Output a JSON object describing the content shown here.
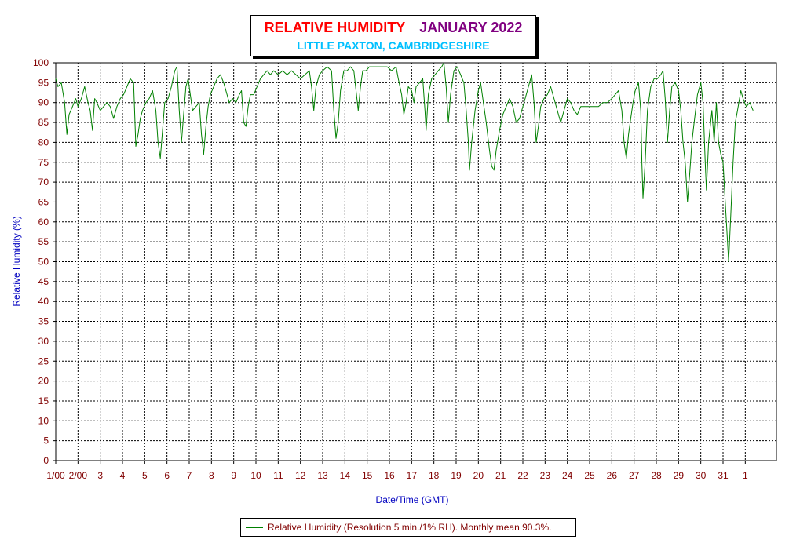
{
  "header": {
    "title": "RELATIVE HUMIDITY",
    "month": "JANUARY 2022",
    "subtitle": "LITTLE PAXTON, CAMBRIDGESHIRE"
  },
  "colors": {
    "series": "#008000",
    "tick_text": "#800000",
    "axis_label": "#0000c0",
    "title": "#ff0000",
    "month": "#800080",
    "subtitle": "#00c0ff"
  },
  "chart_data": {
    "type": "line",
    "xlabel": "Date/Time (GMT)",
    "ylabel": "Relative Humidity (%)",
    "ylim": [
      0,
      100
    ],
    "xlim": [
      1,
      33.4
    ],
    "grid": true,
    "legend_position": "bottom-center",
    "yticks": [
      0,
      5,
      10,
      15,
      20,
      25,
      30,
      35,
      40,
      45,
      50,
      55,
      60,
      65,
      70,
      75,
      80,
      85,
      90,
      95,
      100
    ],
    "xticks": [
      {
        "x": 1,
        "label": "1/00"
      },
      {
        "x": 2,
        "label": "2/00"
      },
      {
        "x": 3,
        "label": "3"
      },
      {
        "x": 4,
        "label": "4"
      },
      {
        "x": 5,
        "label": "5"
      },
      {
        "x": 6,
        "label": "6"
      },
      {
        "x": 7,
        "label": "7"
      },
      {
        "x": 8,
        "label": "8"
      },
      {
        "x": 9,
        "label": "9"
      },
      {
        "x": 10,
        "label": "10"
      },
      {
        "x": 11,
        "label": "11"
      },
      {
        "x": 12,
        "label": "12"
      },
      {
        "x": 13,
        "label": "13"
      },
      {
        "x": 14,
        "label": "14"
      },
      {
        "x": 15,
        "label": "15"
      },
      {
        "x": 16,
        "label": "16"
      },
      {
        "x": 17,
        "label": "17"
      },
      {
        "x": 18,
        "label": "18"
      },
      {
        "x": 19,
        "label": "19"
      },
      {
        "x": 20,
        "label": "20"
      },
      {
        "x": 21,
        "label": "21"
      },
      {
        "x": 22,
        "label": "22"
      },
      {
        "x": 23,
        "label": "23"
      },
      {
        "x": 24,
        "label": "24"
      },
      {
        "x": 25,
        "label": "25"
      },
      {
        "x": 26,
        "label": "26"
      },
      {
        "x": 27,
        "label": "27"
      },
      {
        "x": 28,
        "label": "28"
      },
      {
        "x": 29,
        "label": "29"
      },
      {
        "x": 30,
        "label": "30"
      },
      {
        "x": 31,
        "label": "31"
      },
      {
        "x": 32,
        "label": "1"
      }
    ],
    "series": [
      {
        "name": "Relative Humidity (Resolution 5 min./1% RH). Monthly mean 90.3%.",
        "points": [
          [
            1.0,
            96
          ],
          [
            1.1,
            94
          ],
          [
            1.25,
            95
          ],
          [
            1.4,
            90
          ],
          [
            1.5,
            82
          ],
          [
            1.6,
            87
          ],
          [
            1.75,
            89
          ],
          [
            1.9,
            91
          ],
          [
            2.0,
            89
          ],
          [
            2.15,
            91
          ],
          [
            2.3,
            94
          ],
          [
            2.45,
            90
          ],
          [
            2.55,
            88
          ],
          [
            2.65,
            83
          ],
          [
            2.75,
            91
          ],
          [
            2.85,
            90
          ],
          [
            3.0,
            88
          ],
          [
            3.15,
            89
          ],
          [
            3.3,
            90
          ],
          [
            3.45,
            89
          ],
          [
            3.6,
            86
          ],
          [
            3.75,
            89
          ],
          [
            3.9,
            91
          ],
          [
            4.05,
            92
          ],
          [
            4.2,
            94
          ],
          [
            4.35,
            96
          ],
          [
            4.5,
            95
          ],
          [
            4.6,
            79
          ],
          [
            4.7,
            82
          ],
          [
            4.8,
            86
          ],
          [
            4.9,
            88
          ],
          [
            5.05,
            90
          ],
          [
            5.2,
            91
          ],
          [
            5.35,
            93
          ],
          [
            5.5,
            88
          ],
          [
            5.6,
            80
          ],
          [
            5.7,
            76
          ],
          [
            5.8,
            83
          ],
          [
            5.9,
            90
          ],
          [
            6.05,
            91
          ],
          [
            6.2,
            94
          ],
          [
            6.35,
            98
          ],
          [
            6.45,
            99
          ],
          [
            6.55,
            88
          ],
          [
            6.65,
            80
          ],
          [
            6.75,
            87
          ],
          [
            6.85,
            94
          ],
          [
            6.95,
            96
          ],
          [
            7.05,
            92
          ],
          [
            7.15,
            88
          ],
          [
            7.3,
            89
          ],
          [
            7.45,
            90
          ],
          [
            7.55,
            82
          ],
          [
            7.65,
            77
          ],
          [
            7.75,
            84
          ],
          [
            7.85,
            89
          ],
          [
            7.95,
            92
          ],
          [
            8.1,
            94
          ],
          [
            8.25,
            96
          ],
          [
            8.4,
            97
          ],
          [
            8.55,
            95
          ],
          [
            8.7,
            92
          ],
          [
            8.8,
            90
          ],
          [
            8.95,
            91
          ],
          [
            9.1,
            90
          ],
          [
            9.25,
            92
          ],
          [
            9.35,
            93
          ],
          [
            9.45,
            85
          ],
          [
            9.55,
            84
          ],
          [
            9.65,
            89
          ],
          [
            9.75,
            92
          ],
          [
            9.9,
            92
          ],
          [
            10.05,
            94
          ],
          [
            10.2,
            96
          ],
          [
            10.35,
            97
          ],
          [
            10.5,
            98
          ],
          [
            10.65,
            97
          ],
          [
            10.8,
            98
          ],
          [
            11.0,
            97
          ],
          [
            11.2,
            98
          ],
          [
            11.4,
            97
          ],
          [
            11.6,
            98
          ],
          [
            11.8,
            97
          ],
          [
            12.0,
            96
          ],
          [
            12.2,
            97
          ],
          [
            12.4,
            98
          ],
          [
            12.5,
            94
          ],
          [
            12.6,
            88
          ],
          [
            12.7,
            94
          ],
          [
            12.85,
            97
          ],
          [
            13.0,
            98
          ],
          [
            13.2,
            99
          ],
          [
            13.4,
            98
          ],
          [
            13.5,
            88
          ],
          [
            13.6,
            81
          ],
          [
            13.7,
            85
          ],
          [
            13.8,
            93
          ],
          [
            13.95,
            98
          ],
          [
            14.1,
            98
          ],
          [
            14.25,
            99
          ],
          [
            14.4,
            98
          ],
          [
            14.5,
            93
          ],
          [
            14.6,
            88
          ],
          [
            14.7,
            94
          ],
          [
            14.8,
            98
          ],
          [
            14.95,
            98
          ],
          [
            15.1,
            99
          ],
          [
            15.3,
            99
          ],
          [
            15.5,
            99
          ],
          [
            15.7,
            99
          ],
          [
            15.9,
            99
          ],
          [
            16.1,
            98
          ],
          [
            16.3,
            99
          ],
          [
            16.4,
            96
          ],
          [
            16.55,
            92
          ],
          [
            16.65,
            87
          ],
          [
            16.75,
            90
          ],
          [
            16.85,
            94
          ],
          [
            17.0,
            93
          ],
          [
            17.1,
            90
          ],
          [
            17.2,
            94
          ],
          [
            17.35,
            95
          ],
          [
            17.5,
            96
          ],
          [
            17.6,
            88
          ],
          [
            17.65,
            83
          ],
          [
            17.75,
            92
          ],
          [
            17.9,
            96
          ],
          [
            18.05,
            97
          ],
          [
            18.2,
            98
          ],
          [
            18.35,
            99
          ],
          [
            18.45,
            100
          ],
          [
            18.55,
            94
          ],
          [
            18.65,
            85
          ],
          [
            18.75,
            92
          ],
          [
            18.9,
            98
          ],
          [
            19.05,
            99
          ],
          [
            19.2,
            97
          ],
          [
            19.35,
            95
          ],
          [
            19.45,
            88
          ],
          [
            19.55,
            80
          ],
          [
            19.6,
            73
          ],
          [
            19.7,
            80
          ],
          [
            19.85,
            88
          ],
          [
            20.0,
            93
          ],
          [
            20.1,
            95
          ],
          [
            20.2,
            91
          ],
          [
            20.35,
            85
          ],
          [
            20.5,
            78
          ],
          [
            20.6,
            74
          ],
          [
            20.7,
            73
          ],
          [
            20.8,
            78
          ],
          [
            20.95,
            83
          ],
          [
            21.1,
            87
          ],
          [
            21.25,
            89
          ],
          [
            21.4,
            91
          ],
          [
            21.55,
            89
          ],
          [
            21.7,
            85
          ],
          [
            21.85,
            86
          ],
          [
            22.0,
            89
          ],
          [
            22.15,
            92
          ],
          [
            22.3,
            95
          ],
          [
            22.4,
            97
          ],
          [
            22.5,
            90
          ],
          [
            22.6,
            80
          ],
          [
            22.7,
            84
          ],
          [
            22.8,
            89
          ],
          [
            22.95,
            91
          ],
          [
            23.1,
            92
          ],
          [
            23.25,
            94
          ],
          [
            23.4,
            91
          ],
          [
            23.55,
            88
          ],
          [
            23.7,
            85
          ],
          [
            23.85,
            88
          ],
          [
            24.0,
            91
          ],
          [
            24.15,
            90
          ],
          [
            24.3,
            88
          ],
          [
            24.45,
            87
          ],
          [
            24.6,
            89
          ],
          [
            24.8,
            89
          ],
          [
            25.0,
            89
          ],
          [
            25.2,
            89
          ],
          [
            25.4,
            89
          ],
          [
            25.6,
            90
          ],
          [
            25.8,
            90
          ],
          [
            26.0,
            91
          ],
          [
            26.15,
            92
          ],
          [
            26.3,
            93
          ],
          [
            26.45,
            88
          ],
          [
            26.55,
            80
          ],
          [
            26.65,
            76
          ],
          [
            26.75,
            82
          ],
          [
            26.85,
            86
          ],
          [
            26.95,
            90
          ],
          [
            27.05,
            93
          ],
          [
            27.2,
            95
          ],
          [
            27.3,
            88
          ],
          [
            27.35,
            75
          ],
          [
            27.4,
            66
          ],
          [
            27.5,
            75
          ],
          [
            27.6,
            88
          ],
          [
            27.75,
            94
          ],
          [
            27.9,
            96
          ],
          [
            28.05,
            96
          ],
          [
            28.2,
            97
          ],
          [
            28.3,
            98
          ],
          [
            28.4,
            91
          ],
          [
            28.5,
            80
          ],
          [
            28.6,
            88
          ],
          [
            28.7,
            94
          ],
          [
            28.85,
            95
          ],
          [
            29.0,
            93
          ],
          [
            29.1,
            88
          ],
          [
            29.2,
            80
          ],
          [
            29.3,
            75
          ],
          [
            29.4,
            65
          ],
          [
            29.5,
            72
          ],
          [
            29.6,
            80
          ],
          [
            29.7,
            85
          ],
          [
            29.85,
            92
          ],
          [
            30.0,
            95
          ],
          [
            30.1,
            90
          ],
          [
            30.2,
            75
          ],
          [
            30.25,
            68
          ],
          [
            30.35,
            80
          ],
          [
            30.5,
            88
          ],
          [
            30.6,
            80
          ],
          [
            30.7,
            90
          ],
          [
            30.8,
            80
          ],
          [
            30.9,
            77
          ],
          [
            31.0,
            75
          ],
          [
            31.1,
            65
          ],
          [
            31.2,
            55
          ],
          [
            31.25,
            50
          ],
          [
            31.35,
            62
          ],
          [
            31.45,
            75
          ],
          [
            31.55,
            85
          ],
          [
            31.65,
            88
          ],
          [
            31.8,
            93
          ],
          [
            31.9,
            91
          ],
          [
            32.05,
            89
          ],
          [
            32.2,
            90
          ],
          [
            32.35,
            88
          ]
        ]
      }
    ]
  }
}
